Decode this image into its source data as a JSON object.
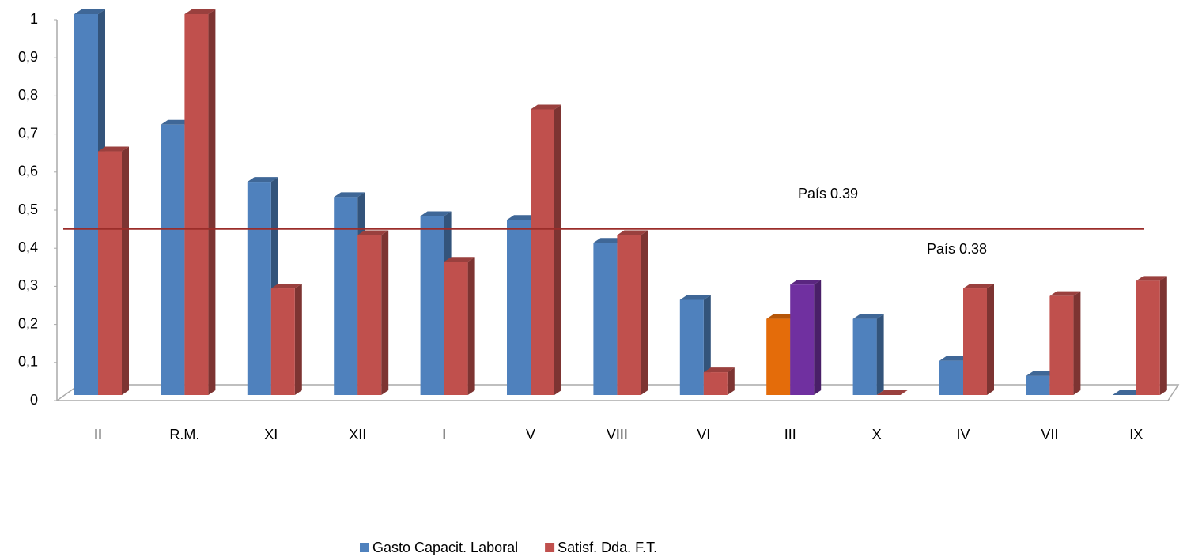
{
  "chart_data": {
    "type": "bar3d",
    "categories": [
      "II",
      "R.M.",
      "XI",
      "XII",
      "I",
      "V",
      "VIII",
      "VI",
      "III",
      "X",
      "IV",
      "VII",
      "IX"
    ],
    "series": [
      {
        "name": "Gasto Capacit. Laboral",
        "color": "#4f81bd",
        "values": [
          1.0,
          0.71,
          0.56,
          0.52,
          0.47,
          0.46,
          0.4,
          0.25,
          0.2,
          0.2,
          0.09,
          0.05,
          0
        ],
        "colors": [
          null,
          null,
          null,
          null,
          null,
          null,
          null,
          null,
          "#e46c0a",
          null,
          null,
          null,
          null
        ]
      },
      {
        "name": "Satisf. Dda. F.T.",
        "color": "#c0504d",
        "values": [
          0.64,
          1.0,
          0.28,
          0.42,
          0.35,
          0.75,
          0.42,
          0.06,
          0.29,
          0,
          0.28,
          0.26,
          0.3
        ],
        "colors": [
          null,
          null,
          null,
          null,
          null,
          null,
          null,
          null,
          "#7030a0",
          null,
          null,
          null,
          null
        ]
      }
    ],
    "ylim": [
      0,
      1
    ],
    "yticks": [
      0,
      {
        "value": 0.1,
        "label": "0,1"
      },
      {
        "value": 0.2,
        "label": "0,2"
      },
      {
        "value": 0.3,
        "label": "0,3"
      },
      {
        "value": 0.4,
        "label": "0,4"
      },
      {
        "value": 0.5,
        "label": "0,5"
      },
      {
        "value": 0.6,
        "label": "0,6"
      },
      {
        "value": 0.7,
        "label": "0,7"
      },
      {
        "value": 0.8,
        "label": "0,8"
      },
      {
        "value": 0.9,
        "label": "0,9"
      },
      1
    ],
    "reference_line": {
      "value": 0.43,
      "color": "#9b2d2a"
    },
    "annotations": [
      "País 0.39",
      "País 0.38"
    ],
    "legend": "bottom"
  }
}
